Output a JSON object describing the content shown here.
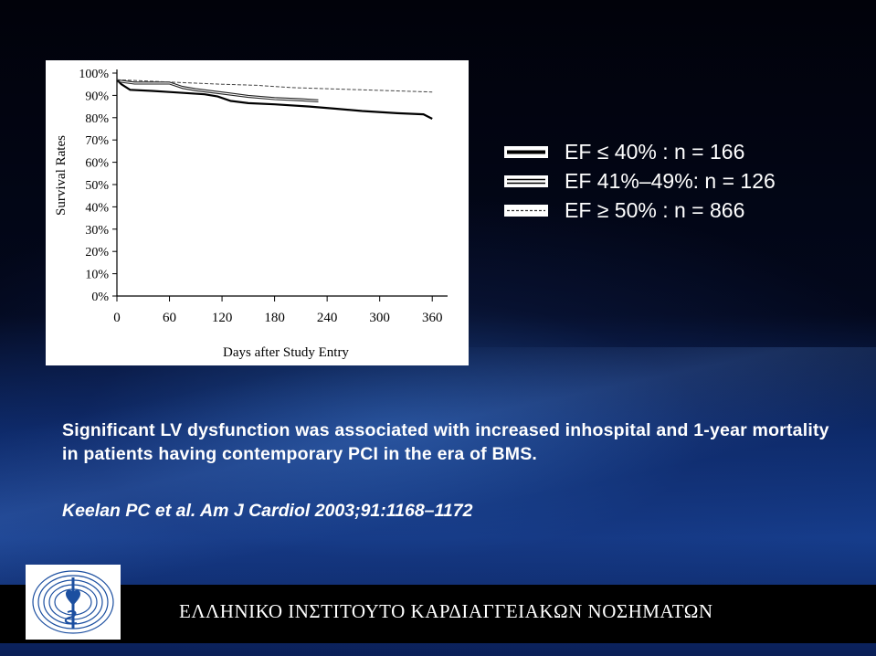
{
  "chart_data": {
    "type": "line",
    "ylabel": "Survival Rates",
    "xlabel": "Days after Study Entry",
    "x_ticks": [
      "0",
      "60",
      "120",
      "180",
      "240",
      "300",
      "360"
    ],
    "y_ticks": [
      "100%",
      "90%",
      "80%",
      "70%",
      "60%",
      "50%",
      "40%",
      "30%",
      "20%",
      "10%",
      "0%"
    ],
    "xlim": [
      0,
      365
    ],
    "ylim": [
      0,
      100
    ],
    "grid": false,
    "series": [
      {
        "name": "EF ≤ 40% : n = 166",
        "style": "solid-thick",
        "x": [
          0,
          5,
          15,
          40,
          60,
          100,
          115,
          130,
          150,
          180,
          220,
          250,
          280,
          320,
          350,
          360
        ],
        "y": [
          97,
          95,
          92.5,
          92,
          91.5,
          90.5,
          89.5,
          87.5,
          86.5,
          86,
          85,
          84,
          83,
          82,
          81.5,
          79.5
        ]
      },
      {
        "name": "EF 41%–49%: n = 126",
        "style": "solid-double",
        "x": [
          0,
          20,
          60,
          75,
          90,
          120,
          150,
          180,
          210,
          230
        ],
        "y": [
          97,
          96,
          96,
          94,
          93,
          91.5,
          90,
          89,
          88.5,
          88
        ]
      },
      {
        "name": "EF ≥ 50% : n = 866",
        "style": "dashed",
        "x": [
          0,
          30,
          60,
          90,
          120,
          160,
          200,
          240,
          280,
          320,
          360
        ],
        "y": [
          97,
          96.5,
          96,
          95.5,
          95,
          94.5,
          93.5,
          93,
          92.5,
          92,
          91.5
        ]
      }
    ]
  },
  "legend": [
    {
      "label": "EF ≤ 40% : n = 166"
    },
    {
      "label": "EF 41%–49%: n = 126"
    },
    {
      "label": "EF ≥ 50% : n = 866"
    }
  ],
  "caption": "Significant LV dysfunction was associated with increased inhospital and 1-year mortality in patients having contemporary PCI in the era of BMS.",
  "citation": "Keelan PC et al. Am J Cardiol 2003;91:1168–1172",
  "footer": {
    "institute": "ΕΛΛΗΝΙΚΟ ΙΝΣΤΙΤΟΥΤΟ ΚΑΡΔΙΑΓΓΕΙΑΚΩΝ ΝΟΣΗΜΑΤΩΝ"
  },
  "colors": {
    "line": "#000000",
    "text": "#ffffff",
    "background_top": "#01020a",
    "background_bottom": "#163d8c"
  }
}
